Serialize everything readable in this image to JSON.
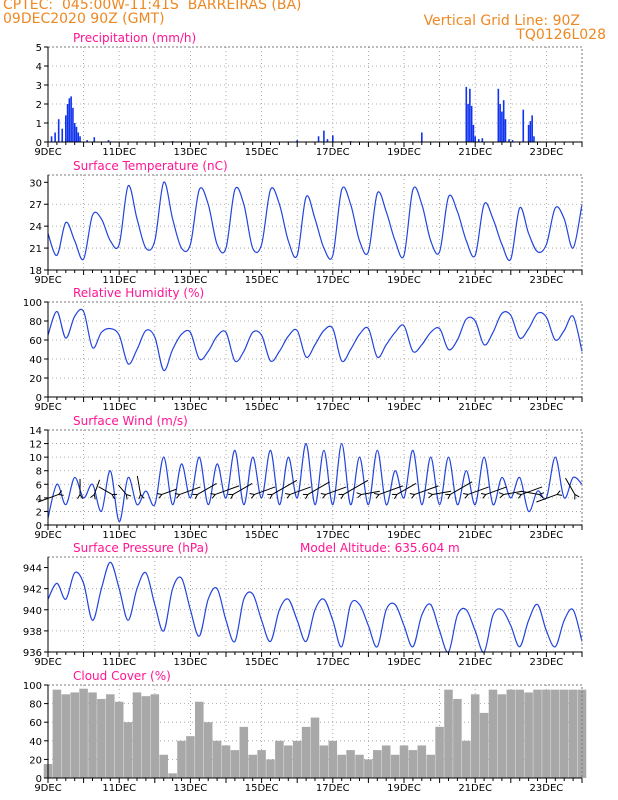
{
  "header": {
    "line1_left": "CPTEC:  045:00W-11:41S  BARREIRAS (BA)",
    "line2_left": "09DEC2020 90Z (GMT)",
    "line1_right": "Vertical Grid Line: 90Z",
    "line2_right": "TQ0126L028",
    "color": "#ee8822"
  },
  "colors": {
    "title": "#ff1493",
    "line": "#2244dd",
    "bar": "#1133ee",
    "cloud": "#a8a8a8",
    "grid": "#999999",
    "axis": "#000000"
  },
  "chart_data": [
    {
      "id": "precip",
      "type": "bar",
      "title": "Precipitation (mm/h)",
      "xlim": [
        0,
        15
      ],
      "ylim": [
        0,
        5
      ],
      "yticks": [
        0,
        1,
        2,
        3,
        4,
        5
      ],
      "xtick_labels": [
        "9DEC",
        "11DEC",
        "13DEC",
        "15DEC",
        "17DEC",
        "19DEC",
        "21DEC",
        "23DEC"
      ],
      "x": [
        0.1,
        0.2,
        0.3,
        0.4,
        0.5,
        0.55,
        0.6,
        0.65,
        0.7,
        0.75,
        0.8,
        0.85,
        0.9,
        1.1,
        1.3,
        1.7,
        3.5,
        7.0,
        7.6,
        7.75,
        7.85,
        8.0,
        8.5,
        10.5,
        11.75,
        11.8,
        11.85,
        11.9,
        11.95,
        12.0,
        12.1,
        12.2,
        12.65,
        12.7,
        12.75,
        12.8,
        12.85,
        12.95,
        13.05,
        13.35,
        13.5,
        13.55,
        13.6,
        13.65
      ],
      "values": [
        0.3,
        0.5,
        1.2,
        0.7,
        1.4,
        2.0,
        2.3,
        2.4,
        1.8,
        1.0,
        0.8,
        0.5,
        0.3,
        0.1,
        0.25,
        0.1,
        0.05,
        0.1,
        0.3,
        0.6,
        0.15,
        0.35,
        0.05,
        0.5,
        2.9,
        2.0,
        2.8,
        1.9,
        0.9,
        0.3,
        0.15,
        0.2,
        2.8,
        2.0,
        1.6,
        2.2,
        1.2,
        0.15,
        0.1,
        1.7,
        0.9,
        1.1,
        1.4,
        0.3
      ]
    },
    {
      "id": "temp",
      "type": "line",
      "title": "Surface Temperature (nC)",
      "xlim": [
        0,
        15
      ],
      "ylim": [
        18,
        31
      ],
      "yticks": [
        18,
        21,
        24,
        27,
        30
      ],
      "xtick_labels": [
        "9DEC",
        "11DEC",
        "13DEC",
        "15DEC",
        "17DEC",
        "19DEC",
        "21DEC",
        "23DEC"
      ],
      "x": [
        0,
        0.25,
        0.5,
        0.75,
        1,
        1.25,
        1.5,
        1.75,
        2,
        2.25,
        2.5,
        2.75,
        3,
        3.25,
        3.5,
        3.75,
        4,
        4.25,
        4.5,
        4.75,
        5,
        5.25,
        5.5,
        5.75,
        6,
        6.25,
        6.5,
        6.75,
        7,
        7.25,
        7.5,
        7.75,
        8,
        8.25,
        8.5,
        8.75,
        9,
        9.25,
        9.5,
        9.75,
        10,
        10.25,
        10.5,
        10.75,
        11,
        11.25,
        11.5,
        11.75,
        12,
        12.25,
        12.5,
        12.75,
        13,
        13.25,
        13.5,
        13.75,
        14,
        14.25,
        14.5,
        14.75,
        15
      ],
      "values": [
        23,
        20,
        24.5,
        22,
        19.5,
        25.5,
        25,
        22,
        21.5,
        29.5,
        25,
        21,
        22,
        30,
        25,
        21,
        21.5,
        29,
        27,
        21.5,
        21,
        29,
        27,
        21,
        21.5,
        29,
        27,
        22,
        20,
        28,
        25,
        21,
        20,
        29,
        27,
        22,
        20.5,
        28.5,
        26,
        22,
        20,
        29,
        27,
        22,
        20.5,
        28,
        26,
        22,
        20,
        27,
        25,
        21.5,
        19.5,
        26.5,
        23,
        20.5,
        21.5,
        26.5,
        25,
        21,
        27
      ]
    },
    {
      "id": "rh",
      "type": "line",
      "title": "Relative Humidity (%)",
      "xlim": [
        0,
        15
      ],
      "ylim": [
        0,
        100
      ],
      "yticks": [
        0,
        20,
        40,
        60,
        80,
        100
      ],
      "xtick_labels": [
        "9DEC",
        "11DEC",
        "13DEC",
        "15DEC",
        "17DEC",
        "19DEC",
        "21DEC",
        "23DEC"
      ],
      "x": [
        0,
        0.25,
        0.5,
        0.75,
        1,
        1.25,
        1.5,
        1.75,
        2,
        2.25,
        2.5,
        2.75,
        3,
        3.25,
        3.5,
        3.75,
        4,
        4.25,
        4.5,
        4.75,
        5,
        5.25,
        5.5,
        5.75,
        6,
        6.25,
        6.5,
        6.75,
        7,
        7.25,
        7.5,
        7.75,
        8,
        8.25,
        8.5,
        8.75,
        9,
        9.25,
        9.5,
        9.75,
        10,
        10.25,
        10.5,
        10.75,
        11,
        11.25,
        11.5,
        11.75,
        12,
        12.25,
        12.5,
        12.75,
        13,
        13.25,
        13.5,
        13.75,
        14,
        14.25,
        14.5,
        14.75,
        15
      ],
      "values": [
        65,
        90,
        62,
        85,
        90,
        52,
        68,
        72,
        65,
        35,
        50,
        70,
        63,
        28,
        50,
        66,
        68,
        40,
        48,
        64,
        68,
        38,
        48,
        68,
        65,
        38,
        48,
        64,
        70,
        42,
        55,
        70,
        72,
        38,
        50,
        66,
        72,
        42,
        55,
        68,
        75,
        48,
        55,
        68,
        72,
        50,
        60,
        82,
        80,
        55,
        68,
        88,
        86,
        62,
        72,
        88,
        84,
        60,
        70,
        85,
        48
      ]
    },
    {
      "id": "wind",
      "type": "line",
      "title": "Surface Wind (m/s)",
      "xlim": [
        0,
        15
      ],
      "ylim": [
        0,
        14
      ],
      "yticks": [
        0,
        2,
        4,
        6,
        8,
        10,
        12,
        14
      ],
      "xtick_labels": [
        "9DEC",
        "11DEC",
        "13DEC",
        "15DEC",
        "17DEC",
        "19DEC",
        "21DEC",
        "23DEC"
      ],
      "x": [
        0,
        0.25,
        0.5,
        0.75,
        1,
        1.25,
        1.5,
        1.75,
        2,
        2.25,
        2.5,
        2.75,
        3,
        3.25,
        3.5,
        3.75,
        4,
        4.25,
        4.5,
        4.75,
        5,
        5.25,
        5.5,
        5.75,
        6,
        6.25,
        6.5,
        6.75,
        7,
        7.25,
        7.5,
        7.75,
        8,
        8.25,
        8.5,
        8.75,
        9,
        9.25,
        9.5,
        9.75,
        10,
        10.25,
        10.5,
        10.75,
        11,
        11.25,
        11.5,
        11.75,
        12,
        12.25,
        12.5,
        12.75,
        13,
        13.25,
        13.5,
        13.75,
        14,
        14.25,
        14.5,
        14.75,
        15
      ],
      "values": [
        1,
        6,
        3,
        7,
        4,
        6,
        2,
        8,
        0.5,
        7,
        3,
        5,
        3,
        10,
        3,
        9,
        4,
        10,
        3,
        9,
        4,
        11,
        3,
        10,
        4,
        11,
        3,
        10,
        4,
        12,
        3,
        11,
        3,
        12,
        3,
        10,
        3,
        11,
        3,
        8,
        4,
        11,
        3,
        10,
        3,
        10,
        3,
        8,
        3,
        10,
        3,
        7,
        4,
        7,
        2,
        5,
        4,
        10,
        4,
        7,
        6
      ],
      "barb_x": [
        0.3,
        0.9,
        1.3,
        1.8,
        2.2,
        2.6,
        3.2,
        3.7,
        4.2,
        4.7,
        5.2,
        5.8,
        6.3,
        6.8,
        7.3,
        7.8,
        8.3,
        8.8,
        9.3,
        9.8,
        10.3,
        10.8,
        11.3,
        11.8,
        12.3,
        12.8,
        13.3,
        13.8,
        14.3,
        14.8
      ],
      "barb_speed": [
        5,
        3,
        3,
        3,
        2,
        4,
        3,
        5,
        5,
        6,
        5,
        5,
        7,
        5,
        6,
        5,
        7,
        4,
        6,
        5,
        6,
        4,
        6,
        5,
        5,
        4,
        5,
        4,
        5,
        4
      ],
      "barb_dir": [
        250,
        0,
        20,
        300,
        320,
        350,
        70,
        70,
        60,
        70,
        60,
        70,
        60,
        70,
        60,
        70,
        60,
        80,
        70,
        60,
        70,
        80,
        60,
        70,
        70,
        80,
        70,
        280,
        250,
        330
      ]
    },
    {
      "id": "pres",
      "type": "line",
      "title": "Surface Pressure (hPa)",
      "subtitle": "Model Altitude: 635.604 m",
      "xlim": [
        0,
        15
      ],
      "ylim": [
        936,
        945
      ],
      "yticks": [
        936,
        938,
        940,
        942,
        944
      ],
      "xtick_labels": [
        "9DEC",
        "11DEC",
        "13DEC",
        "15DEC",
        "17DEC",
        "19DEC",
        "21DEC",
        "23DEC"
      ],
      "x": [
        0,
        0.25,
        0.5,
        0.75,
        1,
        1.25,
        1.5,
        1.75,
        2,
        2.25,
        2.5,
        2.75,
        3,
        3.25,
        3.5,
        3.75,
        4,
        4.25,
        4.5,
        4.75,
        5,
        5.25,
        5.5,
        5.75,
        6,
        6.25,
        6.5,
        6.75,
        7,
        7.25,
        7.5,
        7.75,
        8,
        8.25,
        8.5,
        8.75,
        9,
        9.25,
        9.5,
        9.75,
        10,
        10.25,
        10.5,
        10.75,
        11,
        11.25,
        11.5,
        11.75,
        12,
        12.25,
        12.5,
        12.75,
        13,
        13.25,
        13.5,
        13.75,
        14,
        14.25,
        14.5,
        14.75,
        15
      ],
      "values": [
        941,
        942.5,
        941,
        943.5,
        942.5,
        939,
        942,
        944.5,
        942,
        939,
        942,
        943.5,
        940.5,
        938,
        942,
        943,
        940,
        937.5,
        941,
        942,
        939,
        937,
        941,
        941.5,
        939,
        937,
        940,
        941,
        939,
        937,
        940,
        941,
        939,
        936.5,
        940.5,
        940.5,
        938.5,
        936.5,
        940,
        940.5,
        938.5,
        936.5,
        939.5,
        940.5,
        938,
        936,
        939.5,
        940,
        938,
        936,
        939.5,
        940,
        938.5,
        936.5,
        939,
        940.5,
        938,
        936.5,
        939,
        940,
        937
      ]
    },
    {
      "id": "cloud",
      "type": "area",
      "title": "Cloud Cover (%)",
      "xlim": [
        0,
        15
      ],
      "ylim": [
        0,
        100
      ],
      "yticks": [
        0,
        20,
        40,
        60,
        80,
        100
      ],
      "xtick_labels": [
        "9DEC",
        "11DEC",
        "13DEC",
        "15DEC",
        "17DEC",
        "19DEC",
        "21DEC",
        "23DEC"
      ],
      "x": [
        0,
        0.25,
        0.5,
        0.75,
        1,
        1.25,
        1.5,
        1.75,
        2,
        2.25,
        2.5,
        2.75,
        3,
        3.25,
        3.5,
        3.75,
        4,
        4.25,
        4.5,
        4.75,
        5,
        5.25,
        5.5,
        5.75,
        6,
        6.25,
        6.5,
        6.75,
        7,
        7.25,
        7.5,
        7.75,
        8,
        8.25,
        8.5,
        8.75,
        9,
        9.25,
        9.5,
        9.75,
        10,
        10.25,
        10.5,
        10.75,
        11,
        11.25,
        11.5,
        11.75,
        12,
        12.25,
        12.5,
        12.75,
        13,
        13.25,
        13.5,
        13.75,
        14,
        14.25,
        14.5,
        14.75,
        15
      ],
      "values": [
        15,
        95,
        90,
        92,
        96,
        92,
        85,
        90,
        82,
        60,
        92,
        88,
        90,
        25,
        5,
        40,
        45,
        82,
        60,
        40,
        35,
        30,
        55,
        25,
        30,
        20,
        40,
        35,
        40,
        55,
        65,
        35,
        40,
        25,
        30,
        25,
        20,
        30,
        35,
        25,
        35,
        30,
        35,
        25,
        55,
        95,
        85,
        40,
        90,
        70,
        95,
        90,
        95,
        95,
        92,
        95,
        95,
        95,
        95,
        95,
        95
      ]
    }
  ]
}
